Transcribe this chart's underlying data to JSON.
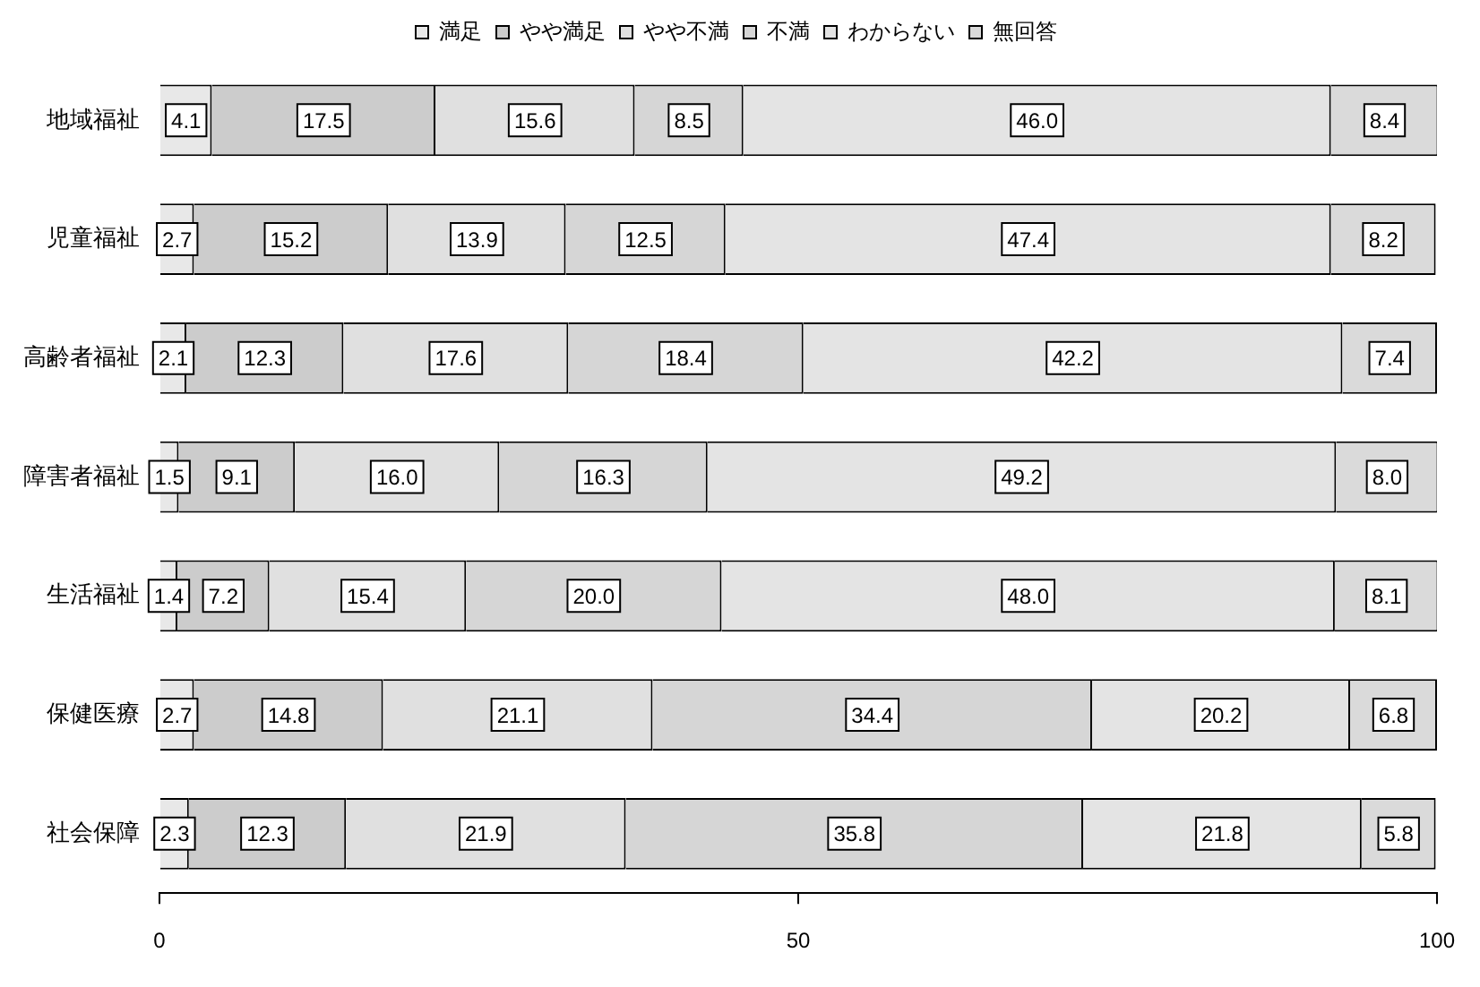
{
  "chart_data": {
    "type": "bar",
    "orientation": "horizontal",
    "stacked": true,
    "legend": "top",
    "grid": false,
    "categories": [
      "地域福祉",
      "児童福祉",
      "高齢者福祉",
      "障害者福祉",
      "生活福祉",
      "保健医療",
      "社会保障"
    ],
    "xlim": [
      0,
      100
    ],
    "xticks": [
      0,
      50,
      100
    ],
    "series": [
      {
        "name": "満足",
        "color": "#e8e8e8",
        "values": [
          4.1,
          2.7,
          2.1,
          1.5,
          1.4,
          2.7,
          2.3
        ],
        "value_labels": [
          "4.1",
          "2.7",
          "2.1",
          "1.5",
          "1.4",
          "2.7",
          "2.3"
        ]
      },
      {
        "name": "やや満足",
        "color": "#cccccc",
        "values": [
          17.5,
          15.2,
          12.3,
          9.1,
          7.2,
          14.8,
          12.3
        ],
        "value_labels": [
          "17.5",
          "15.2",
          "12.3",
          "9.1",
          "7.2",
          "14.8",
          "12.3"
        ]
      },
      {
        "name": "やや不満",
        "color": "#e0e0e0",
        "values": [
          15.6,
          13.9,
          17.6,
          16.0,
          15.4,
          21.1,
          21.9
        ],
        "value_labels": [
          "15.6",
          "13.9",
          "17.6",
          "16.0",
          "15.4",
          "21.1",
          "21.9"
        ]
      },
      {
        "name": "不満",
        "color": "#d6d6d6",
        "values": [
          8.5,
          12.5,
          18.4,
          16.3,
          20.0,
          34.4,
          35.8
        ],
        "value_labels": [
          "8.5",
          "12.5",
          "18.4",
          "16.3",
          "20.0",
          "34.4",
          "35.8"
        ]
      },
      {
        "name": "わからない",
        "color": "#e4e4e4",
        "values": [
          46.0,
          47.4,
          42.2,
          49.2,
          48.0,
          20.2,
          21.8
        ],
        "value_labels": [
          "46.0",
          "47.4",
          "42.2",
          "49.2",
          "48.0",
          "20.2",
          "21.8"
        ]
      },
      {
        "name": "無回答",
        "color": "#dadada",
        "values": [
          8.4,
          8.2,
          7.4,
          8.0,
          8.1,
          6.8,
          5.8
        ],
        "value_labels": [
          "8.4",
          "8.2",
          "7.4",
          "8.0",
          "8.1",
          "6.8",
          "5.8"
        ]
      }
    ]
  }
}
